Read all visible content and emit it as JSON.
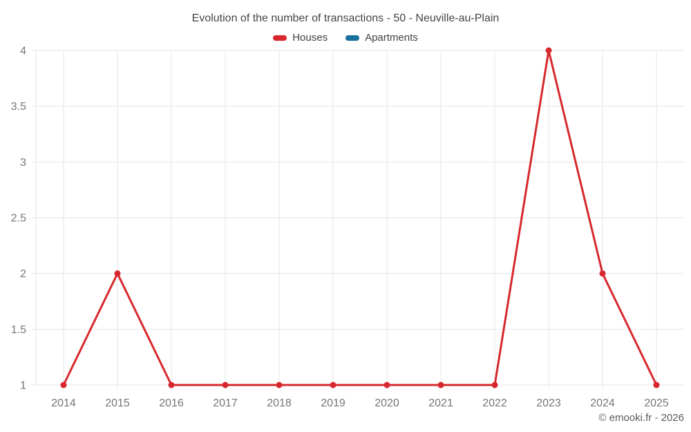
{
  "chart_data": {
    "type": "line",
    "title": "Evolution of the number of transactions - 50 - Neuville-au-Plain",
    "x": [
      2014,
      2015,
      2016,
      2017,
      2018,
      2019,
      2020,
      2021,
      2022,
      2023,
      2024,
      2025
    ],
    "series": [
      {
        "name": "Houses",
        "color": "#d7282d",
        "values": [
          1,
          2,
          1,
          1,
          1,
          1,
          1,
          1,
          1,
          4,
          2,
          1
        ]
      },
      {
        "name": "Apartments",
        "color": "#17719c",
        "values": []
      }
    ],
    "xlabel": "",
    "ylabel": "",
    "ylim": [
      1,
      4
    ],
    "ytick_step": 0.5,
    "grid": true,
    "legend_position": "top"
  },
  "watermark": "© emooki.fr - 2026"
}
